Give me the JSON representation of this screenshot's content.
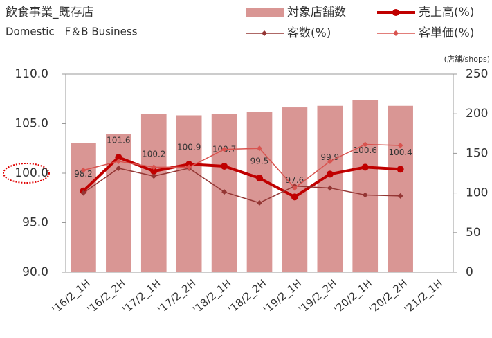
{
  "chart_data": {
    "type": "bar_line",
    "title": "飲食事業_既存店",
    "subtitle": "Domestic　F＆B Business",
    "y2_unit_label": "(店舗/shops)",
    "categories": [
      "'16/2_1H",
      "'16/2_2H",
      "'17/2_1H",
      "'17/2_2H",
      "'18/2_1H",
      "'18/2_2H",
      "'19/2_1H",
      "'19/2_2H",
      "'20/2_1H",
      "'20/2_2H",
      "'21/2_1H"
    ],
    "series": [
      {
        "name": "対象店舗数",
        "kind": "bar",
        "axis": "y2",
        "color": "#d99694",
        "values": [
          163,
          174,
          200,
          198,
          200,
          202,
          208,
          210,
          217,
          210,
          null
        ]
      },
      {
        "name": "売上高(%)",
        "kind": "line",
        "color": "#c00000",
        "width": 4,
        "marker": "circle",
        "labels": true,
        "values": [
          98.2,
          101.6,
          100.2,
          100.9,
          100.7,
          99.5,
          97.6,
          99.9,
          100.6,
          100.4,
          null
        ]
      },
      {
        "name": "客数(%)",
        "kind": "line",
        "color": "#943634",
        "width": 1.5,
        "marker": "diamond",
        "values": [
          98.0,
          100.5,
          99.7,
          100.5,
          98.1,
          97.0,
          98.7,
          98.5,
          97.8,
          97.7,
          null
        ]
      },
      {
        "name": "客単価(%)",
        "kind": "line",
        "color": "#d9534f",
        "width": 1.5,
        "marker": "diamond",
        "values": [
          100.3,
          101.2,
          100.6,
          100.6,
          102.4,
          102.5,
          98.5,
          101.2,
          102.9,
          102.8,
          null
        ]
      }
    ],
    "ylim": [
      90,
      110
    ],
    "yticks": [
      {
        "value": 90,
        "label": "90.0"
      },
      {
        "value": 95,
        "label": "95.0"
      },
      {
        "value": 100,
        "label": "100.0"
      },
      {
        "value": 105,
        "label": "105.0"
      },
      {
        "value": 110,
        "label": "110.0"
      }
    ],
    "y2lim": [
      0,
      250
    ],
    "y2ticks": [
      0,
      50,
      100,
      150,
      200,
      250
    ],
    "grid": false
  }
}
